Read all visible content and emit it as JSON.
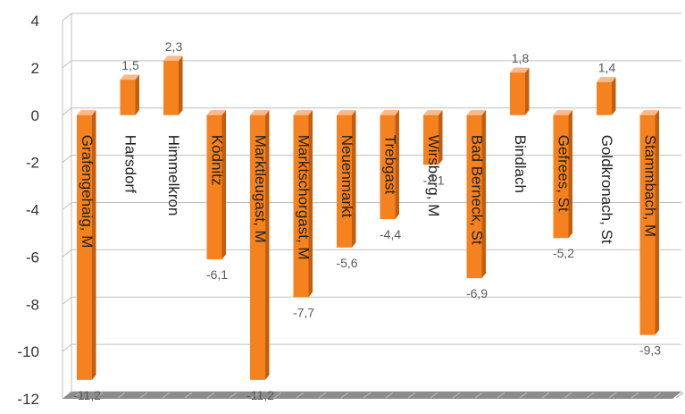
{
  "chart_data": {
    "type": "bar",
    "categories": [
      "Grafengehaig, M",
      "Harsdorf",
      "Himmelkron",
      "Ködnitz",
      "Marktleugast, M",
      "Marktschorgast, M",
      "Neuenmarkt",
      "Trebgast",
      "Wirsberg, M",
      "Bad Berneck, St",
      "Bindlach",
      "Gefrees, St",
      "Goldkronach, St",
      "Stammbach, M"
    ],
    "values": [
      -11.2,
      1.5,
      2.3,
      -6.1,
      -11.2,
      -7.7,
      -5.6,
      -4.4,
      -2.1,
      -6.9,
      1.8,
      -5.2,
      1.4,
      -9.3
    ],
    "data_labels": [
      "-11,2",
      "1,5",
      "2,3",
      "-6,1",
      "-11,2",
      "-7,7",
      "-5,6",
      "-4,4",
      "-2,1",
      "-6,9",
      "1,8",
      "-5,2",
      "1,4",
      "-9,3"
    ],
    "yticks": [
      "4",
      "2",
      "0",
      "-2",
      "-4",
      "-6",
      "-8",
      "-10",
      "-12"
    ],
    "ylim": [
      -12,
      4
    ],
    "grid": true,
    "title": "",
    "xlabel": "",
    "ylabel": "",
    "colors": {
      "bar_front": "#f5821f",
      "bar_side": "#c45e0c",
      "bar_top": "#f9b98a",
      "floor": "#8c8c8c",
      "gridline": "#bfbfbf",
      "label": "#5a5a5a"
    }
  }
}
